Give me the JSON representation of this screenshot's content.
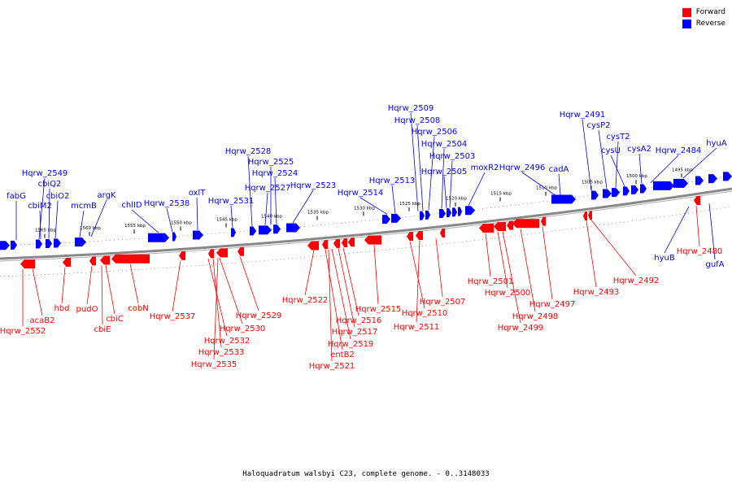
{
  "caption": "Haloquadratum walsbyi C23, complete genome. - 0..3148033",
  "legend": [
    {
      "label": "Forward",
      "color": "#ff0000"
    },
    {
      "label": "Reverse",
      "color": "#0000ff"
    }
  ],
  "colors": {
    "forward": "#ff0000",
    "reverse": "#0000ff",
    "backbone": "#808080"
  },
  "scale_ticks": [
    "1565 kbp",
    "1560 kbp",
    "1555 kbp",
    "1550 kbp",
    "1545 kbp",
    "1540 kbp",
    "1535 kbp",
    "1530 kbp",
    "1525 kbp",
    "1520 kbp",
    "1515 kbp",
    "1510 kbp",
    "1505 kbp",
    "1500 kbp",
    "1495 kbp"
  ],
  "reverse_genes": [
    "fabG",
    "Hqrw_2549",
    "cbiQ2",
    "cbiM2",
    "cbiO2",
    "mcmB",
    "argK",
    "chlID",
    "Hqrw_2538",
    "oxlT",
    "Hqrw_2531",
    "Hqrw_2528",
    "Hqrw_2527",
    "Hqrw_2525",
    "Hqrw_2524",
    "Hqrw_2523",
    "Hqrw_2514",
    "Hqrw_2513",
    "Hqrw_2509",
    "Hqrw_2508",
    "Hqrw_2506",
    "Hqrw_2504",
    "Hqrw_2503",
    "Hqrw_2505",
    "moxR2",
    "Hqrw_2496",
    "cadA",
    "Hqrw_2491",
    "cysP2",
    "cysT2",
    "cysU",
    "cysA2",
    "Hqrw_2484",
    "hyuA",
    "hyuB",
    "gufA"
  ],
  "forward_genes": [
    "Hqrw_2552",
    "acaB2",
    "hbd",
    "pudO",
    "cbiE",
    "cbiC",
    "cobN",
    "Hqrw_2537",
    "Hqrw_2532",
    "Hqrw_2533",
    "Hqrw_2535",
    "Hqrw_2530",
    "Hqrw_2529",
    "Hqrw_2522",
    "entB2",
    "Hqrw_2521",
    "Hqrw_2519",
    "Hqrw_2517",
    "Hqrw_2516",
    "Hqrw_2515",
    "Hqrw_2510",
    "Hqrw_2511",
    "Hqrw_2507",
    "Hqrw_2501",
    "Hqrw_2500",
    "Hqrw_2499",
    "Hqrw_2498",
    "Hqrw_2497",
    "Hqrw_2493",
    "Hqrw_2492",
    "Hqrw_2480"
  ]
}
